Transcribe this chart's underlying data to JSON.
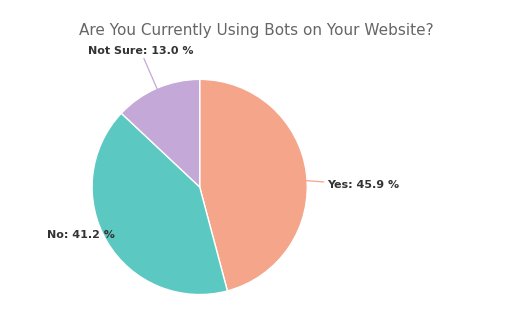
{
  "title": "Are You Currently Using Bots on Your Website?",
  "labels": [
    "Yes",
    "No",
    "Not Sure"
  ],
  "values": [
    45.9,
    41.2,
    13.0
  ],
  "colors": [
    "#F4A58A",
    "#5CC8C2",
    "#C4A8D8"
  ],
  "label_texts": [
    "Yes: 45.9 %",
    "No: 41.2 %",
    "Not Sure: 13.0 %"
  ],
  "background_color": "#FFFFFF",
  "title_color": "#666666",
  "title_fontsize": 11,
  "label_fontsize": 8,
  "startangle": 90,
  "line_colors": [
    "#F4A58A",
    "#5CC8C2",
    "#C4A8D8"
  ]
}
